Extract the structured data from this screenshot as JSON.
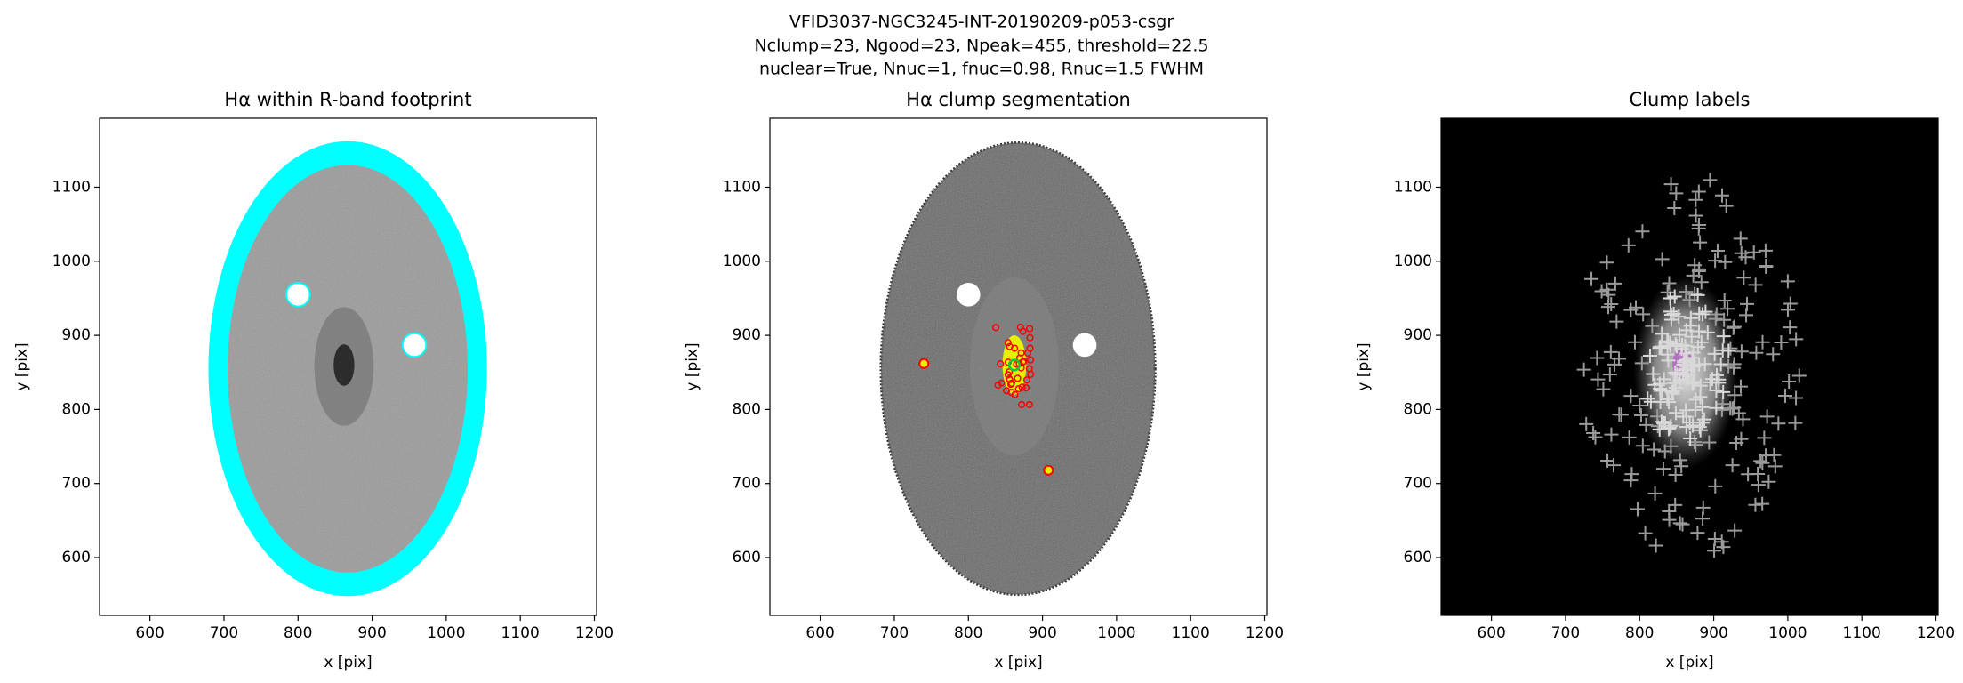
{
  "figure_title": [
    "VFID3037-NGC3245-INT-20190209-p053-csgr",
    "Nclump=23, Ngood=23, Npeak=455, threshold=22.5",
    "nuclear=True, Nnuc=1, fnuc=0.98, Rnuc=1.5 FWHM"
  ],
  "chart_data": [
    {
      "type": "image",
      "title": "Hα within R-band footprint",
      "xlabel": "x [pix]",
      "ylabel": "y [pix]",
      "xlim": [
        532,
        1203
      ],
      "ylim": [
        522,
        1193
      ],
      "xticks": [
        600,
        700,
        800,
        900,
        1000,
        1100,
        1200
      ],
      "yticks": [
        600,
        700,
        800,
        900,
        1000,
        1100
      ]
    },
    {
      "type": "image",
      "title": "Hα clump segmentation",
      "xlabel": "x [pix]",
      "ylabel": "y [pix]",
      "xlim": [
        532,
        1203
      ],
      "ylim": [
        522,
        1193
      ],
      "xticks": [
        600,
        700,
        800,
        900,
        1000,
        1100,
        1200
      ],
      "yticks": [
        600,
        700,
        800,
        900,
        1000,
        1100
      ]
    },
    {
      "type": "image",
      "title": "Clump labels",
      "xlabel": "x [pix]",
      "ylabel": "y [pix]",
      "xlim": [
        532,
        1203
      ],
      "ylim": [
        522,
        1193
      ],
      "xticks": [
        600,
        700,
        800,
        900,
        1000,
        1100,
        1200
      ],
      "yticks": [
        600,
        700,
        800,
        900,
        1000,
        1100
      ]
    }
  ]
}
